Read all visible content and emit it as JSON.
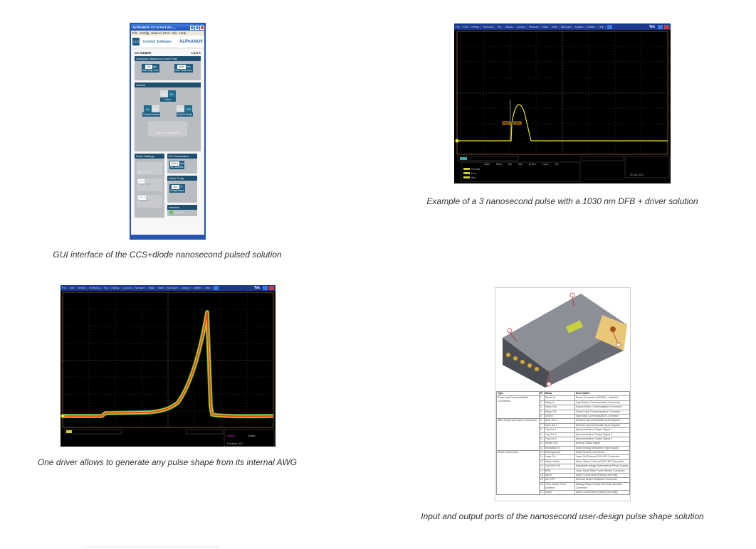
{
  "figures": [
    {
      "caption": "GUI interface of the CCS+diode nanosecond pulsed solution",
      "gui": {
        "title": "ALPhANOV CC-S Port 25 L...",
        "menu": [
          "File",
          "Config",
          "Save to CCS",
          "Info",
          "Help"
        ],
        "logo_ccs": "CCS",
        "logo_text": "Control Software",
        "logo_brand": "ALPhANOV",
        "device_id": "CC-S15837",
        "line": "Line 1",
        "max_panel": "Configure Maximum Levels Post",
        "max_avg_value": "700",
        "max_avg_label": "Max Avg. Curr.",
        "max_peak_value": "4000",
        "max_peak_label": "Max Peak Curr.",
        "unit_ma": "mA",
        "control_panel": "Control",
        "laser_off": "Off",
        "laser_on": "On",
        "laser_label": "Laser",
        "source_int": "Int",
        "source_ext": "Ext",
        "source_label": "Current source",
        "mode_pulse": "Pulse",
        "mode_cw": "CW",
        "mode_label": "Control Mode",
        "trigger_label": "Trigger / Protection: Int.",
        "pulse_panel": "Pulse Settings",
        "peak_current_label": "Peak current",
        "pulse_width_value": "20.0",
        "pulse_width_label": "Pulse width",
        "frequency_value": "100.0",
        "frequency_label": "Frequency",
        "dc_panel": "DC Parameters",
        "dc_value": "600.0",
        "dc_label": "DC Current",
        "temp_panel": "Diode Temp.",
        "temp_value": "25.0",
        "temp_unit": "°C",
        "temp_label": "Temperature",
        "interlock_panel": "Interlock",
        "interlock_status": "Enabled"
      }
    },
    {
      "caption": "Example of a 3 nanosecond pulse with a 1030 nm DFB + driver solution",
      "scope": {
        "menu": [
          "File",
          "Edit",
          "Vertical",
          "Horiz/Acq",
          "Trig",
          "Display",
          "Cursors",
          "Measure",
          "Mask",
          "Math",
          "MyScope",
          "Analyze",
          "Utilities",
          "Help"
        ],
        "brand": "Tek",
        "trace_color": "#e8e020",
        "meas_headers": [
          "Value",
          "Mean",
          "Min",
          "Max",
          "St Dev",
          "Count",
          "Info"
        ],
        "meas_rows": [
          "Pos Wid",
          "Freq",
          "Rise"
        ],
        "date": "25 July, 2014"
      }
    },
    {
      "caption": "One driver allows to generate any pulse shape from its internal AWG",
      "scope": {
        "menu": [
          "File",
          "Edit",
          "Vertical",
          "Horiz/Acq",
          "Trig",
          "Display",
          "Cursors",
          "Measure",
          "Mask",
          "Math",
          "MyScope",
          "Analyze",
          "Utilities",
          "Help"
        ],
        "brand": "Tek",
        "trace_color": "#f07020",
        "mode": "FastAcq",
        "acq": "Sample",
        "date": "23 octubre, 2017"
      }
    },
    {
      "caption": "Input and output ports of the nanosecond user-design pulse shape solution",
      "table": {
        "headers": [
          "Type",
          "N°",
          "Name",
          "Description"
        ],
        "groups": [
          {
            "type": "Power and Communication Connectors",
            "rows": [
              [
                "1",
                "Power In",
                "Power Connector (24V/5A) - included"
              ],
              [
                "2",
                "Daisy In",
                "Input Molex Communication Connector"
              ],
              [
                "3",
                "Daisy Out",
                "Output Molex Communication Connector"
              ],
              [
                "4",
                "Daisy Out",
                "Output Jack Communication Connector"
              ],
              [
                "5",
                "USB In",
                "Input Jack Communication Connector"
              ]
            ]
          },
          {
            "type": "SMA Output and Input Connectors",
            "rows": [
              [
                "6",
                "Sync Ext 0",
                "External Synchronization Input Signal 0"
              ],
              [
                "7",
                "Sync Ext 1",
                "External Synchronization Input Signal 1"
              ],
              [
                "8",
                "Trig Out 1",
                "Synchronization Output Signal 1"
              ],
              [
                "9",
                "Trig Out 2",
                "Synchronization Output Signal 2"
              ],
              [
                "10",
                "Trig Out 3",
                "Synchronization Output Signal 3"
              ],
              [
                "11",
                "Shape Out",
                "Analog Output Signal"
              ],
              [
                "12",
                "Modulation In",
                "Diode Analog Modulation Input Signal"
              ]
            ]
          },
          {
            "type": "Molex Connectors",
            "rows": [
              [
                "13",
                "Earth/ground",
                "Earth/Ground Connection"
              ],
              [
                "14",
                "Laser On",
                "Laser On External 24V LED Connector"
              ],
              [
                "15",
                "Alarm status",
                "Alarm Status External 24V LED Connector"
              ],
              [
                "16",
                "Out 18V/1.5A",
                "Adjustable voltage Symmetrical Power Supply"
              ],
              [
                "17",
                "BFM",
                "Laser Diode Back Facet Monitor Connector"
              ],
              [
                "18",
                "Spare",
                "Spare Connectors (Factory use only)"
              ],
              [
                "19",
                "Aux OFF",
                "External Board Shutdown Connector"
              ],
              [
                "20",
                "Form select/ Scan Duration",
                "Analog Shape Choice and Scan Duration Connector"
              ],
              [
                "21",
                "Spare",
                "Spare Connectors (Factory use only)"
              ]
            ]
          }
        ]
      }
    }
  ]
}
